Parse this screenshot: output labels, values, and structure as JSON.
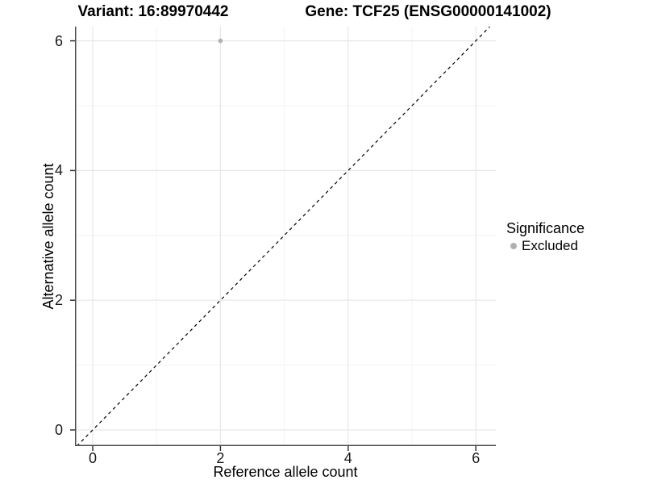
{
  "chart_data": {
    "type": "scatter",
    "title_left": "Variant: 16:89970442",
    "title_right": "Gene: TCF25 (ENSG00000141002)",
    "xlabel": "Reference allele count",
    "ylabel": "Alternative allele count",
    "xlim": [
      -0.278,
      6.313
    ],
    "ylim": [
      -0.249,
      6.219
    ],
    "xticks": [
      0,
      2,
      4,
      6
    ],
    "yticks": [
      0,
      2,
      4,
      6
    ],
    "xticks_minor": [
      1,
      3,
      5
    ],
    "yticks_minor": [
      1,
      3,
      5
    ],
    "grid": "major+minor",
    "legend_position": "right",
    "identity_line": {
      "slope": 1,
      "intercept": 0,
      "style": "dashed",
      "color": "#000000"
    },
    "points": [
      {
        "x": 2,
        "y": 6,
        "series": "Excluded"
      }
    ]
  },
  "legend": {
    "title": "Significance",
    "entries": [
      {
        "label": "Excluded",
        "color": "#b0b0b0"
      }
    ]
  },
  "style": {
    "grid_major_color": "#e7e7e7",
    "grid_minor_color": "#f3f3f3",
    "axis_color": "#4d4d4d",
    "tick_color": "#333333",
    "point_radius": 2.8,
    "background": "#ffffff"
  }
}
